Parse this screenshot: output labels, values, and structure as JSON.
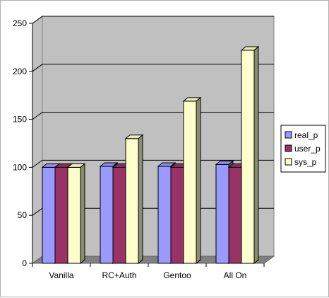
{
  "chart_data": {
    "type": "bar",
    "style": "3d-clustered-column",
    "title": "",
    "xlabel": "",
    "ylabel": "",
    "categories": [
      "Vanilla",
      "RC+Auth",
      "Gentoo",
      "All On"
    ],
    "series": [
      {
        "name": "real_p",
        "color": "#9999ff",
        "values": [
          100,
          101,
          101,
          103
        ]
      },
      {
        "name": "user_p",
        "color": "#993366",
        "values": [
          100,
          100,
          100,
          100
        ]
      },
      {
        "name": "sys_p",
        "color": "#ffffcc",
        "values": [
          100,
          130,
          169,
          222
        ]
      }
    ],
    "ylim": [
      0,
      250
    ],
    "yticks": [
      "0",
      "50",
      "100",
      "150",
      "200",
      "250"
    ],
    "grid": true,
    "legend": "right",
    "colors": {
      "wall": "#c0c0c0",
      "floor": "#808080",
      "gridline": "#000000"
    }
  }
}
